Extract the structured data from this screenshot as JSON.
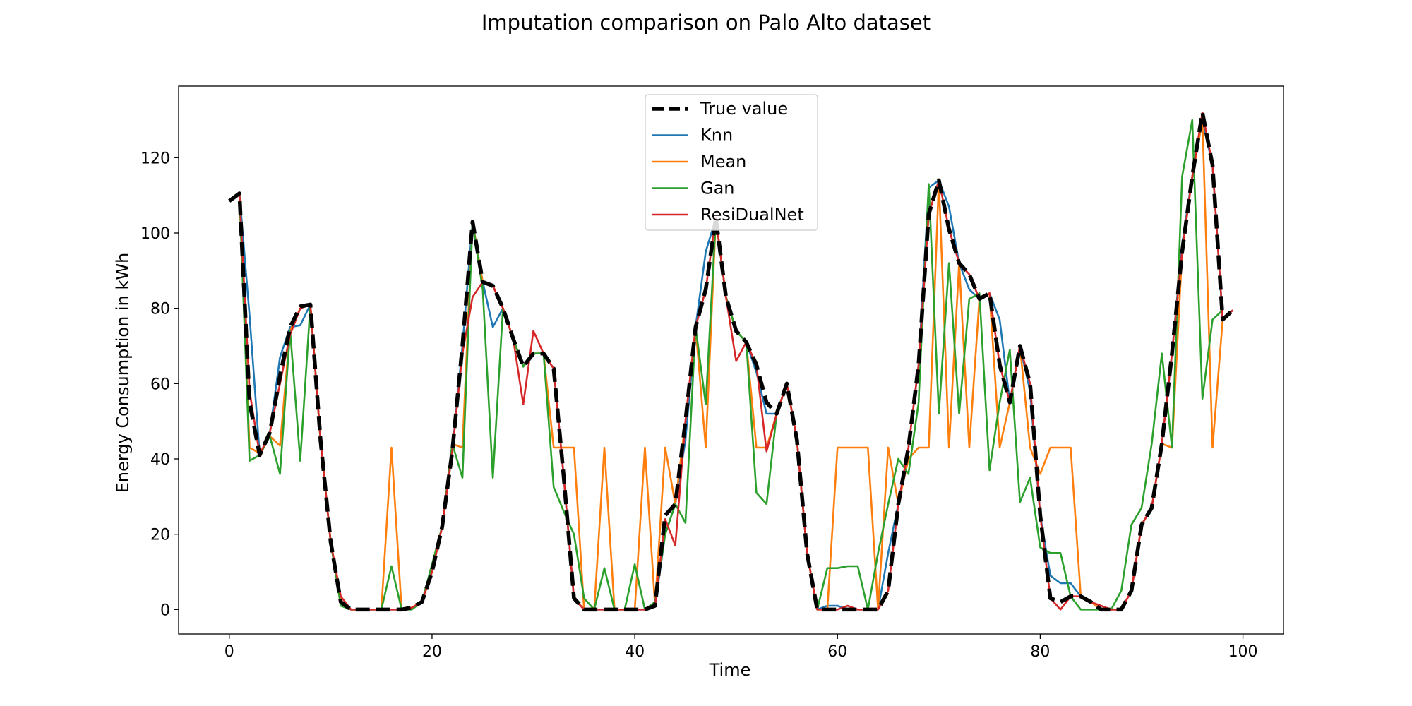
{
  "chart_data": {
    "type": "line",
    "title": "Imputation comparison on Palo Alto dataset",
    "xlabel": "Time",
    "ylabel": "Energy Consumption in kWh",
    "xlim": [
      -5,
      104
    ],
    "ylim": [
      -6.5,
      139
    ],
    "xticks": [
      0,
      20,
      40,
      60,
      80,
      100
    ],
    "yticks": [
      0,
      20,
      40,
      60,
      80,
      100,
      120
    ],
    "grid": false,
    "legend": "top-center",
    "series": [
      {
        "name": "True value",
        "color": "#000000",
        "style": "dashed",
        "values": [
          108.5,
          110.5,
          55,
          41,
          47,
          62,
          75,
          80.5,
          81,
          45,
          18,
          2,
          0,
          0,
          0,
          0,
          0,
          0,
          0.5,
          2,
          10,
          22,
          42,
          70,
          103,
          87,
          86,
          80,
          72,
          64.5,
          68,
          68,
          64,
          35,
          3,
          0,
          0,
          0,
          0,
          0,
          0,
          0,
          1,
          25,
          28,
          50,
          75,
          85,
          104,
          83,
          74,
          71,
          65,
          55,
          52,
          60,
          45,
          15,
          0,
          0,
          0,
          0,
          0,
          0,
          0,
          5,
          28,
          43,
          65,
          105,
          114,
          101,
          92,
          89,
          82.5,
          84,
          65,
          55,
          70,
          60,
          25,
          3,
          2,
          3.5,
          3.5,
          2,
          0,
          0,
          0,
          5,
          22.5,
          27,
          44,
          68,
          95,
          115,
          132,
          118,
          77,
          79.5
        ]
      },
      {
        "name": "Knn",
        "color": "#1f77b4",
        "style": "solid",
        "values": [
          108.5,
          110.5,
          78,
          41,
          47,
          67,
          75,
          75.5,
          81,
          45,
          18,
          2,
          0,
          0,
          0,
          0,
          0,
          0,
          0.5,
          2,
          10,
          22,
          42,
          70,
          103,
          87,
          75,
          80,
          72,
          64.5,
          68,
          68,
          64,
          35,
          3,
          0,
          0,
          0,
          0,
          0,
          0,
          0,
          1,
          20,
          28,
          45,
          75,
          95,
          104,
          83,
          74,
          71,
          63,
          52,
          52,
          60,
          45,
          15,
          0,
          1,
          1,
          0,
          0,
          0,
          0,
          15,
          28,
          43,
          65,
          112,
          114,
          107,
          92,
          85,
          82.5,
          84,
          77,
          55,
          70,
          58,
          25,
          9,
          7,
          7,
          3.5,
          2,
          0,
          0,
          0,
          5,
          22.5,
          27,
          44,
          68,
          97,
          115,
          130,
          118,
          77,
          79.5
        ]
      },
      {
        "name": "Mean",
        "color": "#ff7f0e",
        "style": "solid",
        "values": [
          108.5,
          110.5,
          43,
          41.5,
          46,
          43.5,
          74,
          80,
          81,
          45,
          18,
          2,
          0,
          0,
          0,
          0,
          43,
          0,
          0.5,
          2,
          10,
          22,
          44,
          43,
          103,
          87,
          86,
          80,
          72,
          64.5,
          68,
          68,
          43,
          43,
          43,
          0,
          0,
          43,
          0,
          0,
          0,
          43,
          1,
          43,
          28,
          50,
          75,
          43,
          104,
          83,
          74,
          71,
          43,
          43,
          52,
          60,
          45,
          15,
          0,
          0,
          43,
          43,
          43,
          43,
          0,
          43,
          28,
          40,
          43,
          43,
          114,
          43,
          92,
          43,
          82.5,
          84,
          43,
          55,
          70,
          43,
          36,
          43,
          43,
          43,
          3.5,
          2,
          0,
          0,
          0,
          5,
          22.5,
          27,
          44,
          43,
          95,
          115,
          130,
          43,
          77,
          79.5
        ]
      },
      {
        "name": "Gan",
        "color": "#2ca02c",
        "style": "solid",
        "values": [
          108.5,
          110.5,
          39.5,
          41,
          46,
          36,
          74,
          39.5,
          81,
          45,
          18,
          1,
          0,
          0,
          0,
          0,
          11.5,
          0,
          0,
          2,
          12,
          22,
          44,
          35,
          103,
          85,
          35,
          80,
          72,
          64.5,
          68,
          68,
          32.5,
          26,
          20,
          3,
          0,
          11,
          0,
          0,
          12,
          0,
          2,
          20,
          28,
          23,
          75,
          54.5,
          104,
          83,
          74,
          71,
          31,
          28,
          52,
          60,
          45,
          15,
          0,
          11,
          11,
          11.5,
          11.5,
          0,
          15,
          28,
          40,
          36,
          55,
          113,
          52,
          92,
          52,
          82.5,
          84,
          37,
          55,
          69,
          28.5,
          35,
          16.5,
          15,
          15,
          3.5,
          0,
          0,
          0,
          0,
          5,
          22.5,
          27,
          44,
          68,
          43,
          115,
          130,
          56,
          77,
          79.5
        ]
      },
      {
        "name": "ResiDualNet",
        "color": "#d62728",
        "style": "solid",
        "values": [
          108.5,
          110.5,
          58,
          41,
          47,
          60,
          73,
          80,
          81,
          45,
          18,
          3.5,
          0,
          0,
          0,
          0,
          0,
          0,
          0.5,
          2,
          10,
          22,
          42,
          68,
          83,
          87,
          86,
          80,
          72,
          54.5,
          74,
          68,
          64,
          35,
          3,
          0,
          0,
          0,
          0,
          0,
          0,
          0,
          1,
          24,
          17,
          50,
          75,
          85,
          104,
          83,
          66,
          71,
          65,
          42,
          52,
          60,
          45,
          15,
          0,
          0,
          0,
          1,
          0,
          0,
          0,
          5,
          28,
          43,
          65,
          105,
          114,
          101,
          92,
          89,
          82.5,
          84,
          65,
          55,
          70,
          60,
          25,
          3,
          0,
          3.5,
          3.5,
          2,
          1,
          0,
          0,
          5,
          22.5,
          27,
          44,
          68,
          95,
          115,
          132,
          118,
          77,
          79.5
        ]
      }
    ]
  }
}
